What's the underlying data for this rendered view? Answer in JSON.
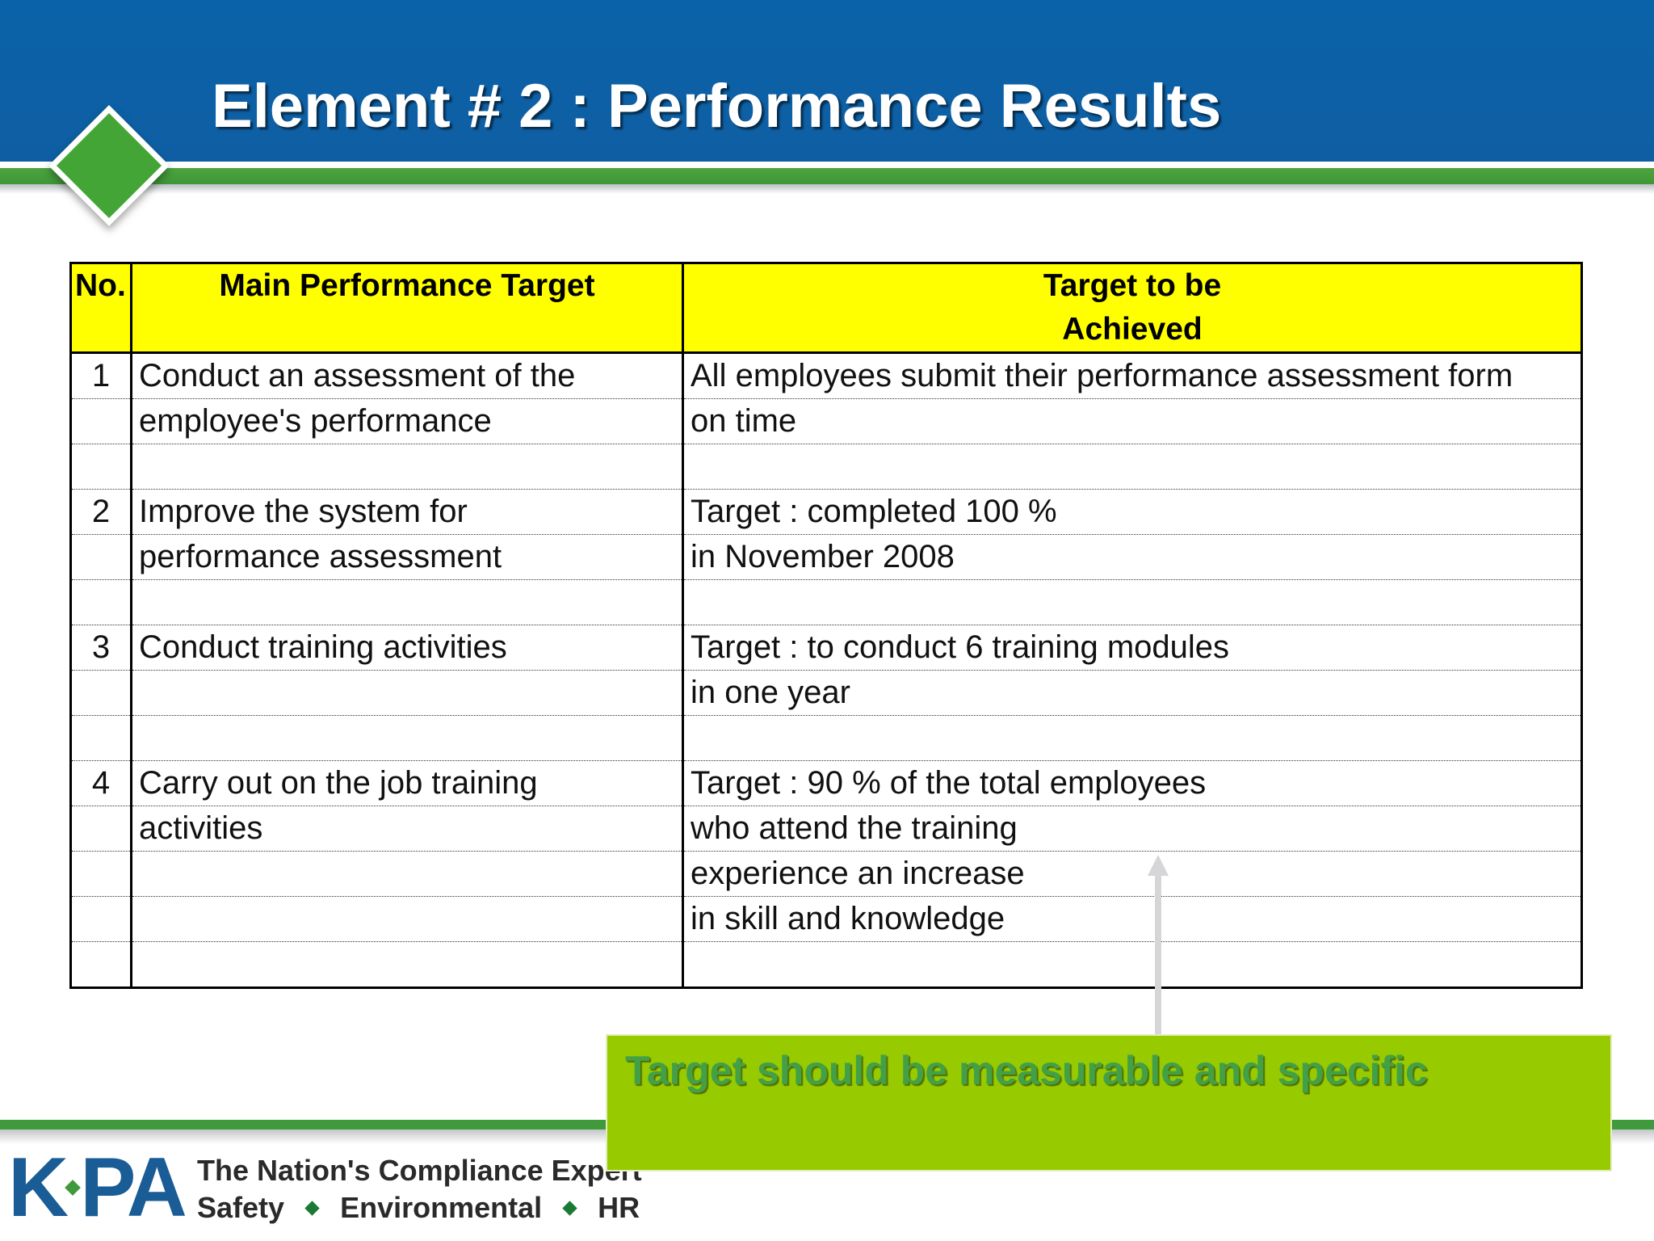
{
  "title": "Element # 2 : Performance Results",
  "table": {
    "headers": {
      "no": "No.",
      "target": "Main Performance Target",
      "achieved_line1": "Target to be",
      "achieved_line2": "Achieved"
    },
    "rows": [
      {
        "no": "1",
        "target": "Conduct an assessment of the",
        "achieved": "All employees submit their performance assessment form"
      },
      {
        "no": "",
        "target": "employee's performance",
        "achieved": "on time"
      },
      {
        "no": "",
        "target": "",
        "achieved": ""
      },
      {
        "no": "2",
        "target": "Improve the system for",
        "achieved": "Target : completed 100 %"
      },
      {
        "no": "",
        "target": "performance assessment",
        "achieved": "in November 2008"
      },
      {
        "no": "",
        "target": "",
        "achieved": ""
      },
      {
        "no": "3",
        "target": "Conduct training activities",
        "achieved": "Target : to conduct 6 training modules"
      },
      {
        "no": "",
        "target": "",
        "achieved": "in one year"
      },
      {
        "no": "",
        "target": "",
        "achieved": ""
      },
      {
        "no": "4",
        "target": "Carry out on the job training",
        "achieved": "Target : 90 % of the total employees"
      },
      {
        "no": "",
        "target": "activities",
        "achieved": "who attend the training"
      },
      {
        "no": "",
        "target": "",
        "achieved": "experience an increase"
      },
      {
        "no": "",
        "target": "",
        "achieved": "in skill and knowledge"
      },
      {
        "no": "",
        "target": "",
        "achieved": ""
      }
    ]
  },
  "callout": {
    "text": "Target should be measurable and specific"
  },
  "footer": {
    "logo_left": "K",
    "logo_right": "PA",
    "tagline_line1": "The Nation's Compliance Expert",
    "tag_safety": "Safety",
    "tag_environmental": "Environmental",
    "tag_hr": "HR"
  },
  "colors": {
    "header_blue": "#0a63a8",
    "accent_green": "#43a535",
    "table_header_yellow": "#ffff00",
    "callout_green": "#97cb00",
    "logo_blue": "#1a5c96"
  }
}
